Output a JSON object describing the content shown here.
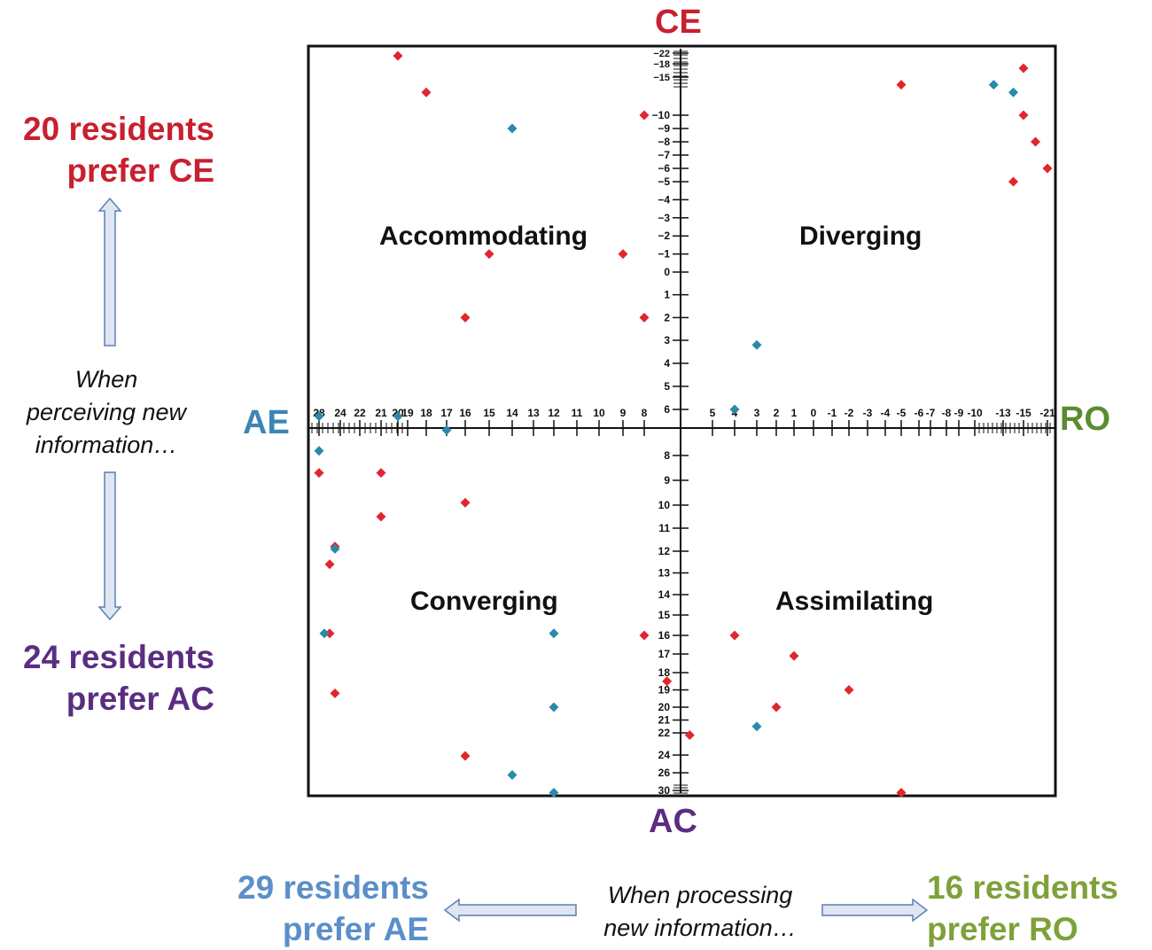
{
  "labels": {
    "ce_count": "20 residents",
    "ce_pref": "prefer CE",
    "ac_count": "24 residents",
    "ac_pref": "prefer AC",
    "ae_count": "29 residents",
    "ae_pref": "prefer AE",
    "ro_count": "16 residents",
    "ro_pref": "prefer RO",
    "perceiving_1": "When",
    "perceiving_2": "perceiving new",
    "perceiving_3": "information…",
    "processing_1": "When processing",
    "processing_2": "new information…"
  },
  "colors": {
    "ce": "#c8202f",
    "ac": "#5a2d82",
    "ae": "#3a86b4",
    "ro": "#5b8c2f",
    "ae_count": "#5b8fc9",
    "ro_count": "#7ea13a",
    "red_point": "#e0262f",
    "blue_point": "#2a8aa8",
    "arrow_fill": "#dfe6f2",
    "arrow_stroke": "#5b7fb6"
  },
  "chart_data": {
    "type": "scatter",
    "title": "",
    "axes": {
      "top": "CE",
      "bottom": "AC",
      "left": "AE",
      "right": "RO"
    },
    "quadrants": {
      "top_left": "Accommodating",
      "top_right": "Diverging",
      "bottom_left": "Converging",
      "bottom_right": "Assimilating"
    },
    "y_ticks_top": [
      "-22",
      "-18",
      "-15",
      "-10",
      "-9",
      "-8",
      "-7",
      "-6",
      "-5",
      "-4",
      "-3",
      "-2",
      "-1",
      "0",
      "1",
      "2",
      "3",
      "4",
      "5",
      "6"
    ],
    "y_ticks_bottom": [
      "8",
      "9",
      "10",
      "11",
      "12",
      "13",
      "14",
      "15",
      "16",
      "17",
      "18",
      "19",
      "20",
      "21",
      "22",
      "24",
      "26",
      "30"
    ],
    "x_ticks_left": [
      "28",
      "24",
      "22",
      "21",
      "20",
      "19",
      "18",
      "17",
      "16",
      "15",
      "14",
      "13",
      "12",
      "11",
      "10",
      "9",
      "8"
    ],
    "x_ticks_right": [
      "5",
      "4",
      "3",
      "2",
      "1",
      "0",
      "-1",
      "-2",
      "-3",
      "-4",
      "-5",
      "-6",
      "-7",
      "-8",
      "-9",
      "-10",
      "-13",
      "-15",
      "-21"
    ],
    "series": [
      {
        "color": "red",
        "points": [
          {
            "x": 20,
            "y": -21
          },
          {
            "x": 18,
            "y": -13
          },
          {
            "x": 8,
            "y": -10
          },
          {
            "x": -5,
            "y": -14
          },
          {
            "x": -15,
            "y": -17
          },
          {
            "x": -15,
            "y": -10
          },
          {
            "x": -18,
            "y": -8
          },
          {
            "x": -14,
            "y": -5
          },
          {
            "x": -21,
            "y": -6
          },
          {
            "x": 15,
            "y": -1
          },
          {
            "x": 9,
            "y": -1
          },
          {
            "x": 16,
            "y": 2
          },
          {
            "x": 8,
            "y": 2
          },
          {
            "x": 28,
            "y": 8.7
          },
          {
            "x": 21,
            "y": 8.7
          },
          {
            "x": 16,
            "y": 9.9
          },
          {
            "x": 21,
            "y": 10.5
          },
          {
            "x": 25,
            "y": 11.8
          },
          {
            "x": 26,
            "y": 12.6
          },
          {
            "x": 26,
            "y": 15.9
          },
          {
            "x": 25,
            "y": 19.2
          },
          {
            "x": 8,
            "y": 16
          },
          {
            "x": 16,
            "y": 24.1
          },
          {
            "x": 7,
            "y": 18.5
          },
          {
            "x": 6,
            "y": 22.2
          },
          {
            "x": 4,
            "y": 16
          },
          {
            "x": 1,
            "y": 17.1
          },
          {
            "x": -2,
            "y": 19
          },
          {
            "x": 2,
            "y": 20
          },
          {
            "x": -5,
            "y": 30.5
          }
        ]
      },
      {
        "color": "blue",
        "points": [
          {
            "x": 14,
            "y": -9
          },
          {
            "x": -12,
            "y": -14
          },
          {
            "x": -14,
            "y": -13
          },
          {
            "x": 3,
            "y": 3.2
          },
          {
            "x": 28,
            "y": 6.3
          },
          {
            "x": 20,
            "y": 6.3
          },
          {
            "x": 4,
            "y": 6
          },
          {
            "x": 17,
            "y": 6.9
          },
          {
            "x": 28,
            "y": 7.8
          },
          {
            "x": 25,
            "y": 11.9
          },
          {
            "x": 27,
            "y": 15.9
          },
          {
            "x": 12,
            "y": 15.9
          },
          {
            "x": 12,
            "y": 20
          },
          {
            "x": 14,
            "y": 26.5
          },
          {
            "x": 12,
            "y": 30.5
          },
          {
            "x": 3,
            "y": 21.5
          }
        ]
      }
    ]
  }
}
